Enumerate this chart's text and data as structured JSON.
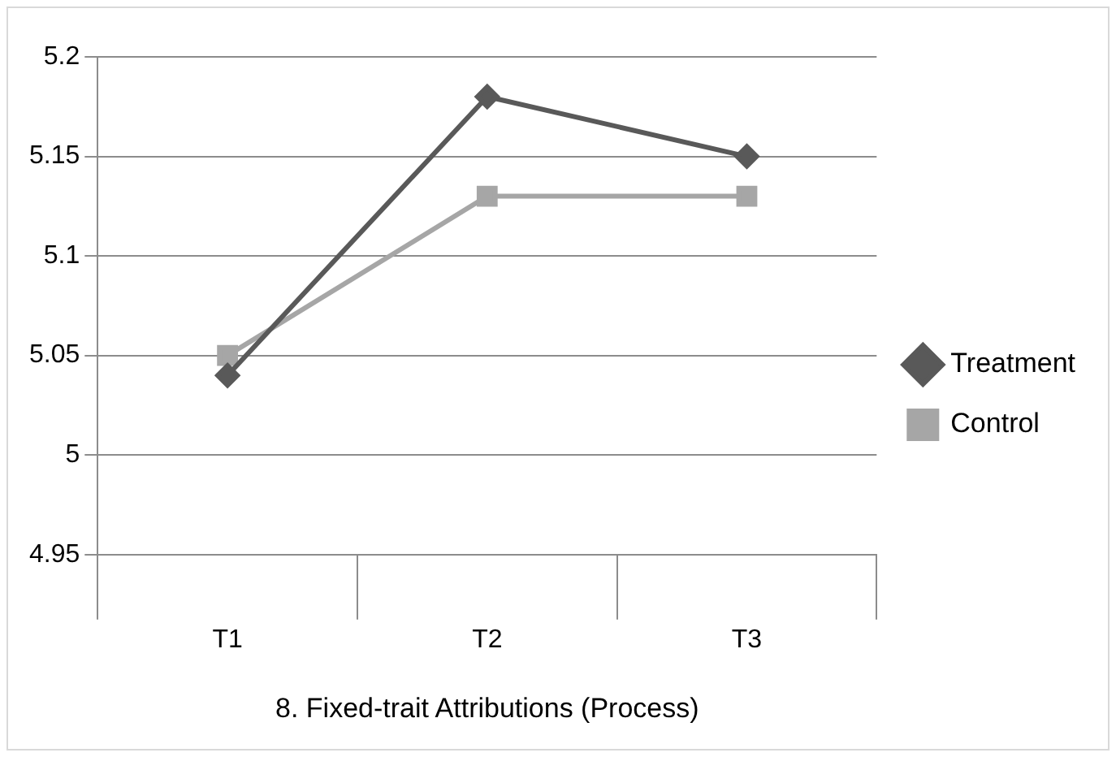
{
  "chart_data": {
    "type": "line",
    "categories": [
      "T1",
      "T2",
      "T3"
    ],
    "xlabel": "8. Fixed-trait Attributions (Process)",
    "series": [
      {
        "name": "Treatment",
        "color": "#595959",
        "marker": "diamond",
        "values": [
          5.04,
          5.18,
          5.15
        ]
      },
      {
        "name": "Control",
        "color": "#a6a6a6",
        "marker": "square",
        "values": [
          5.05,
          5.13,
          5.13
        ]
      }
    ],
    "ylim": [
      4.95,
      5.2
    ],
    "yticks": [
      4.95,
      5,
      5.05,
      5.1,
      5.15,
      5.2
    ],
    "grid": "y",
    "legend": "right",
    "line_style": "solid"
  }
}
